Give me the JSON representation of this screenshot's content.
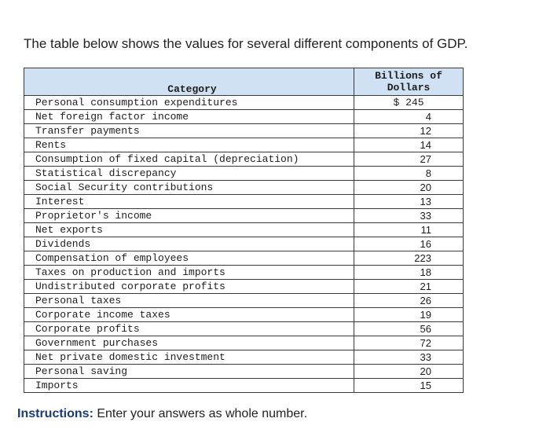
{
  "intro": "The table below shows the values for several different components of GDP.",
  "table": {
    "header_category": "Category",
    "header_value_line1": "Billions of",
    "header_value_line2": "Dollars",
    "rows": [
      {
        "category": "Personal consumption expenditures",
        "value": "$ 245"
      },
      {
        "category": "Net foreign factor income",
        "value": "4"
      },
      {
        "category": "Transfer payments",
        "value": "12"
      },
      {
        "category": "Rents",
        "value": "14"
      },
      {
        "category": "Consumption of fixed capital (depreciation)",
        "value": "27"
      },
      {
        "category": "Statistical discrepancy",
        "value": "8"
      },
      {
        "category": "Social Security contributions",
        "value": "20"
      },
      {
        "category": "Interest",
        "value": "13"
      },
      {
        "category": "Proprietor's income",
        "value": "33"
      },
      {
        "category": "Net exports",
        "value": "11"
      },
      {
        "category": "Dividends",
        "value": "16"
      },
      {
        "category": "Compensation of employees",
        "value": "223"
      },
      {
        "category": "Taxes on production and imports",
        "value": "18"
      },
      {
        "category": "Undistributed corporate profits",
        "value": "21"
      },
      {
        "category": "Personal taxes",
        "value": "26"
      },
      {
        "category": "Corporate income taxes",
        "value": "19"
      },
      {
        "category": "Corporate profits",
        "value": "56"
      },
      {
        "category": "Government purchases",
        "value": "72"
      },
      {
        "category": "Net private domestic investment",
        "value": "33"
      },
      {
        "category": "Personal saving",
        "value": "20"
      },
      {
        "category": "Imports",
        "value": "15"
      }
    ]
  },
  "instructions": {
    "label": "Instructions:",
    "text": " Enter your answers as whole number."
  },
  "colors": {
    "header_bg": "#cfe1f3",
    "instructions_label": "#1a3a7a"
  }
}
